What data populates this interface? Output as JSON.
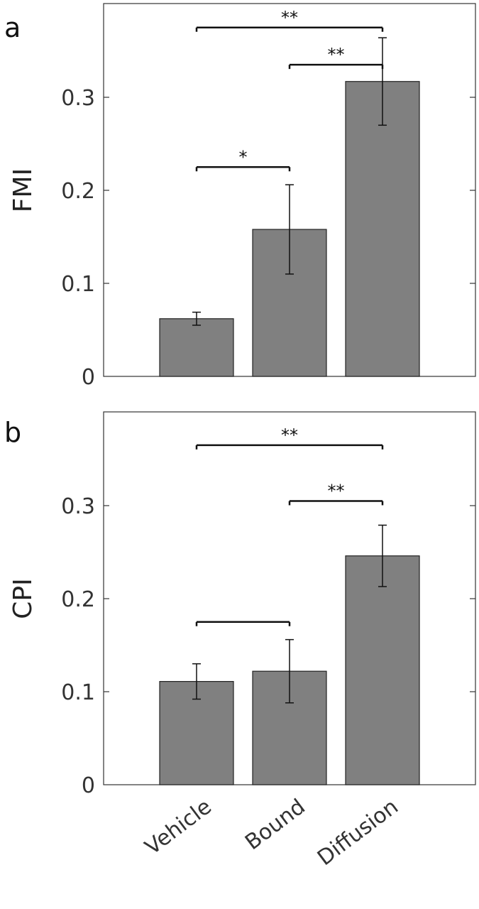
{
  "chart_data": [
    {
      "type": "bar",
      "panel": "a",
      "ylabel": "FMI",
      "xlabel": "",
      "categories": [
        "Vehicle",
        "Bound",
        "Diffusion"
      ],
      "values": [
        0.062,
        0.158,
        0.317
      ],
      "errors": [
        0.007,
        0.048,
        0.047
      ],
      "ylim": [
        0,
        0.4
      ],
      "yticks": [
        "0",
        "0.1",
        "0.2",
        "0.3"
      ],
      "bar_color": "#808080",
      "grid": false,
      "significance": [
        {
          "from": 0,
          "to": 1,
          "y": 0.225,
          "label": "*"
        },
        {
          "from": 1,
          "to": 2,
          "y": 0.335,
          "label": "**"
        },
        {
          "from": 0,
          "to": 2,
          "y": 0.375,
          "label": "**"
        }
      ]
    },
    {
      "type": "bar",
      "panel": "b",
      "ylabel": "CPI",
      "xlabel": "",
      "categories": [
        "Vehicle",
        "Bound",
        "Diffusion"
      ],
      "values": [
        0.111,
        0.122,
        0.246
      ],
      "errors": [
        0.019,
        0.034,
        0.033
      ],
      "ylim": [
        0,
        0.4
      ],
      "yticks": [
        "0",
        "0.1",
        "0.2",
        "0.3"
      ],
      "bar_color": "#808080",
      "grid": false,
      "significance": [
        {
          "from": 0,
          "to": 1,
          "y": 0.175,
          "label": ""
        },
        {
          "from": 1,
          "to": 2,
          "y": 0.305,
          "label": "**"
        },
        {
          "from": 0,
          "to": 2,
          "y": 0.365,
          "label": "**"
        }
      ]
    }
  ]
}
